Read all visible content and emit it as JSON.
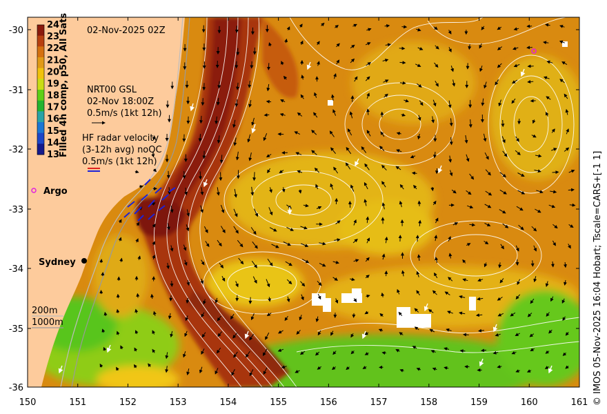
{
  "title": "02-Nov-2025 02Z",
  "colorbar": {
    "title": "Filled 4h comp, p50, All Sats",
    "ticks": [
      "24",
      "23",
      "22",
      "21",
      "20",
      "19",
      "18",
      "17",
      "16",
      "15",
      "14",
      "13"
    ],
    "colors": [
      "#8a1a0c",
      "#b8400f",
      "#d5700f",
      "#e19a15",
      "#f1c20c",
      "#c9dd14",
      "#5ed015",
      "#23b430",
      "#2aa3a6",
      "#1b76d4",
      "#1d46c8",
      "#151a8c"
    ]
  },
  "current_legend": {
    "line1": "NRT00 GSL",
    "line2": "02-Nov 18:00Z",
    "line3": "0.5m/s (1kt 12h)"
  },
  "radar_legend": {
    "line1": "HF radar velocity",
    "line2": "(3-12h avg) noQC",
    "line3": "0.5m/s (1kt 12h)"
  },
  "places": {
    "argo": "Argo",
    "sydney": "Sydney"
  },
  "isobath_legend": {
    "a": "200m",
    "b": "1000m"
  },
  "credit": "© IMOS 05-Nov-2025 16:04 Hobart; Tscale=CARS+[-1 1]",
  "axes": {
    "x_ticks": [
      "150",
      "151",
      "152",
      "153",
      "154",
      "155",
      "156",
      "157",
      "158",
      "159",
      "160",
      "161"
    ],
    "y_ticks": [
      "-30",
      "-31",
      "-32",
      "-33",
      "-34",
      "-35",
      "-36"
    ]
  },
  "colors": {
    "land": "#fdcb9c",
    "warm_core": "#9e2a0e",
    "ocean_orange": "#d9840e",
    "ocean_yellow": "#e5b515",
    "green": "#66c81a",
    "contour": "#ffffff",
    "argo": "#e020e0"
  }
}
